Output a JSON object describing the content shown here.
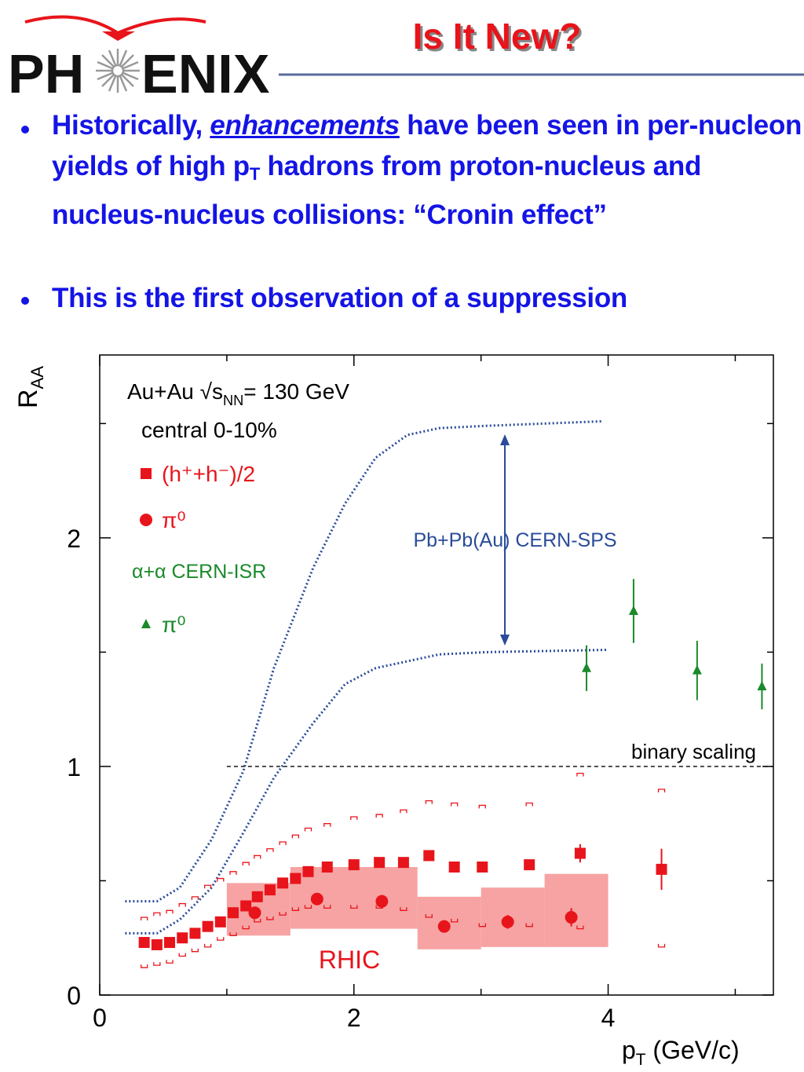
{
  "slide": {
    "logo": {
      "left": "PH",
      "right": "ENIX"
    },
    "title": "Is It New?",
    "bullets": [
      {
        "parts": [
          "Historically, ",
          "enhancements",
          " have been seen in per-nucleon yields of high p",
          "T",
          " hadrons from proton-nucleus and nucleus-nucleus collisions: “Cronin effect”"
        ]
      },
      {
        "parts": [
          "This is the first observation of a suppression"
        ]
      }
    ]
  },
  "chart_data": {
    "type": "scatter",
    "xlabel_parts": [
      "p",
      "T",
      " (GeV/c)"
    ],
    "ylabel_parts": [
      "R",
      "AA"
    ],
    "legend_title_parts": [
      "Au+Au √s",
      "NN",
      "= 130 GeV"
    ],
    "legend_subtitle": "central 0-10%",
    "legend_group_label": "α+α CERN-ISR",
    "xlim": [
      0,
      5.3
    ],
    "ylim": [
      0,
      2.8
    ],
    "xticks": [
      0,
      2,
      4
    ],
    "yticks": [
      0,
      1,
      2
    ],
    "xminorticks": [
      1,
      3,
      5
    ],
    "yminorticks": [
      0.5,
      1.5,
      2.5
    ],
    "series": [
      {
        "name": "(h⁺+h⁻)/2",
        "marker": "square",
        "color": "#e8141b",
        "x": [
          0.35,
          0.45,
          0.55,
          0.65,
          0.75,
          0.85,
          0.95,
          1.05,
          1.15,
          1.24,
          1.34,
          1.44,
          1.54,
          1.64,
          1.79,
          2.0,
          2.2,
          2.39,
          2.59,
          2.79,
          3.01,
          3.38,
          3.78,
          4.42
        ],
        "values": [
          0.23,
          0.22,
          0.23,
          0.25,
          0.27,
          0.3,
          0.32,
          0.36,
          0.39,
          0.43,
          0.46,
          0.49,
          0.51,
          0.54,
          0.56,
          0.57,
          0.58,
          0.58,
          0.61,
          0.56,
          0.56,
          0.57,
          0.62,
          0.55
        ],
        "errors": [
          null,
          null,
          null,
          null,
          null,
          null,
          null,
          null,
          null,
          null,
          null,
          null,
          null,
          null,
          null,
          null,
          null,
          null,
          null,
          null,
          null,
          null,
          0.04,
          0.09
        ],
        "sys_upper": [
          0.34,
          0.36,
          0.37,
          0.4,
          0.43,
          0.48,
          0.51,
          0.54,
          0.58,
          0.61,
          0.64,
          0.67,
          0.7,
          0.73,
          0.75,
          0.78,
          0.79,
          0.81,
          0.85,
          0.84,
          0.83,
          0.84,
          0.97,
          0.9
        ],
        "sys_lower": [
          0.12,
          0.13,
          0.14,
          0.17,
          0.19,
          0.21,
          0.24,
          0.26,
          0.29,
          0.32,
          0.33,
          0.35,
          0.37,
          0.38,
          0.38,
          0.38,
          0.38,
          0.37,
          0.34,
          0.32,
          0.3,
          0.3,
          0.29,
          0.21
        ]
      },
      {
        "name": "π⁰",
        "marker": "circle",
        "color": "#e8141b",
        "x": [
          1.22,
          1.71,
          2.22,
          2.71,
          3.21,
          3.71
        ],
        "values": [
          0.36,
          0.42,
          0.41,
          0.3,
          0.32,
          0.34
        ],
        "errors": [
          null,
          null,
          0.02,
          null,
          0.03,
          0.04
        ]
      },
      {
        "name": "π⁰",
        "marker": "triangle",
        "color": "#1a8a2a",
        "x": [
          3.83,
          4.2,
          4.7,
          5.21
        ],
        "values": [
          1.43,
          1.68,
          1.42,
          1.35
        ],
        "errors": [
          0.1,
          0.14,
          0.13,
          0.1
        ]
      }
    ],
    "bands": {
      "name": "RHIC",
      "color": "#f7a3a3",
      "bins": [
        1.0,
        1.5,
        2.5,
        3.0,
        3.5,
        4.0
      ],
      "low": [
        0.26,
        0.29,
        0.2,
        0.21,
        0.21
      ],
      "high": [
        0.49,
        0.56,
        0.43,
        0.47,
        0.53
      ]
    },
    "sps": {
      "label": "Pb+Pb(Au) CERN-SPS",
      "color": "#2a4c9a",
      "upper": {
        "x": [
          0.2,
          0.45,
          0.63,
          0.88,
          1.13,
          1.37,
          1.68,
          1.93,
          2.17,
          2.42,
          2.67,
          3.04,
          3.96
        ],
        "values": [
          0.41,
          0.41,
          0.47,
          0.68,
          0.98,
          1.43,
          1.87,
          2.15,
          2.35,
          2.45,
          2.48,
          2.49,
          2.51
        ]
      },
      "lower": {
        "x": [
          0.2,
          0.45,
          0.63,
          0.88,
          1.13,
          1.37,
          1.68,
          1.93,
          2.17,
          2.67,
          3.04,
          3.99
        ],
        "values": [
          0.27,
          0.27,
          0.33,
          0.47,
          0.71,
          0.95,
          1.19,
          1.36,
          1.43,
          1.49,
          1.5,
          1.51
        ]
      }
    },
    "reference_line": {
      "label": "binary scaling",
      "value": 1,
      "x_start": 1.0
    }
  }
}
